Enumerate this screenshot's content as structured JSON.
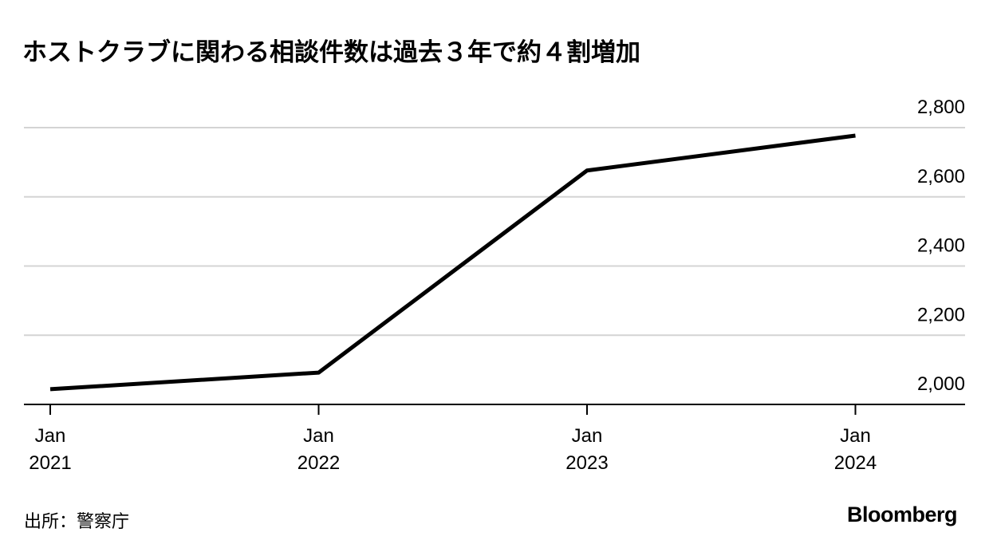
{
  "chart_data": {
    "type": "line",
    "title": "ホストクラブに関わる相談件数は過去３年で約４割増加",
    "categories": [
      "Jan 2021",
      "Jan 2022",
      "Jan 2023",
      "Jan 2024"
    ],
    "series": [
      {
        "name": "相談件数",
        "color": "#000000",
        "values": [
          2044,
          2092,
          2676,
          2777
        ]
      }
    ],
    "ylim": [
      2000,
      2800
    ],
    "yticks": [
      {
        "value": 2000,
        "label": "2,000"
      },
      {
        "value": 2200,
        "label": "2,200"
      },
      {
        "value": 2400,
        "label": "2,400"
      },
      {
        "value": 2600,
        "label": "2,600"
      },
      {
        "value": 2800,
        "label": "2,800"
      }
    ],
    "grid": true,
    "source": "出所：警察庁",
    "brand": "Bloomberg"
  }
}
